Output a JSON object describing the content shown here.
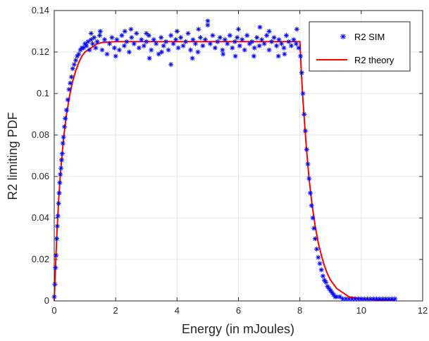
{
  "chart_data": {
    "type": "scatter",
    "xlabel": "Energy (in mJoules)",
    "ylabel": "R2 limiting PDF",
    "xlim": [
      0,
      12
    ],
    "ylim": [
      0,
      0.14
    ],
    "x_ticks": [
      0,
      2,
      4,
      6,
      8,
      10,
      12
    ],
    "y_ticks": [
      0,
      0.02,
      0.04,
      0.06,
      0.08,
      0.1,
      0.12,
      0.14
    ],
    "x_tick_labels": [
      "0",
      "2",
      "4",
      "6",
      "8",
      "10",
      "12"
    ],
    "y_tick_labels": [
      "0",
      "0.02",
      "0.04",
      "0.06",
      "0.08",
      "0.1",
      "0.12",
      "0.14"
    ],
    "grid": true,
    "legend_position": "top-right",
    "series": [
      {
        "name": "R2 SIM",
        "kind": "scatter",
        "marker": "asterisk",
        "color": "#0000ff",
        "x": [
          0.0,
          0.02,
          0.04,
          0.06,
          0.08,
          0.1,
          0.12,
          0.14,
          0.16,
          0.18,
          0.2,
          0.22,
          0.24,
          0.26,
          0.28,
          0.3,
          0.33,
          0.36,
          0.4,
          0.44,
          0.48,
          0.52,
          0.56,
          0.6,
          0.65,
          0.7,
          0.75,
          0.8,
          0.85,
          0.9,
          0.95,
          1.0,
          1.05,
          1.1,
          1.15,
          1.2,
          1.25,
          1.3,
          1.35,
          1.4,
          1.48,
          1.56,
          1.64,
          1.72,
          1.8,
          1.88,
          1.96,
          2.04,
          2.12,
          2.2,
          2.28,
          2.36,
          2.44,
          2.52,
          2.6,
          2.68,
          2.76,
          2.84,
          2.92,
          3.0,
          3.08,
          3.16,
          3.24,
          3.32,
          3.4,
          3.48,
          3.56,
          3.64,
          3.72,
          3.8,
          3.88,
          3.96,
          4.04,
          4.12,
          4.2,
          4.28,
          4.36,
          4.44,
          4.52,
          4.6,
          4.68,
          4.76,
          4.84,
          4.92,
          5.0,
          5.08,
          5.16,
          5.24,
          5.32,
          5.4,
          5.48,
          5.56,
          5.64,
          5.72,
          5.8,
          5.88,
          5.96,
          6.04,
          6.12,
          6.2,
          6.28,
          6.36,
          6.44,
          6.52,
          6.6,
          6.68,
          6.76,
          6.84,
          6.92,
          7.0,
          7.08,
          7.16,
          7.24,
          7.32,
          7.4,
          7.48,
          7.56,
          7.64,
          7.72,
          7.8,
          7.88,
          7.96,
          8.02,
          8.06,
          8.1,
          8.14,
          8.18,
          8.22,
          8.26,
          8.3,
          8.34,
          8.38,
          8.42,
          8.46,
          8.5,
          8.55,
          8.6,
          8.65,
          8.7,
          8.75,
          8.8,
          8.85,
          8.9,
          8.95,
          9.0,
          9.05,
          9.1,
          9.15,
          9.2,
          9.3,
          9.4,
          9.5,
          9.6,
          9.7,
          9.8,
          9.9,
          10.0,
          10.1,
          10.2,
          10.3,
          10.4,
          10.5,
          10.6,
          10.7,
          10.8,
          10.9,
          11.0,
          11.1,
          1.5,
          2.0,
          2.5,
          3.0,
          3.5,
          3.8,
          4.0,
          4.5,
          5.0,
          5.5,
          6.0,
          6.5,
          7.0,
          7.5,
          1.2,
          2.3,
          3.1,
          4.7,
          5.9,
          6.7,
          7.3,
          7.9
        ],
        "y": [
          0.002,
          0.008,
          0.016,
          0.022,
          0.03,
          0.036,
          0.041,
          0.047,
          0.052,
          0.057,
          0.061,
          0.064,
          0.068,
          0.071,
          0.076,
          0.079,
          0.084,
          0.088,
          0.092,
          0.097,
          0.102,
          0.105,
          0.108,
          0.112,
          0.114,
          0.116,
          0.118,
          0.119,
          0.121,
          0.122,
          0.122,
          0.124,
          0.123,
          0.125,
          0.121,
          0.126,
          0.124,
          0.127,
          0.122,
          0.125,
          0.128,
          0.121,
          0.126,
          0.119,
          0.124,
          0.127,
          0.122,
          0.126,
          0.121,
          0.128,
          0.123,
          0.125,
          0.12,
          0.127,
          0.124,
          0.129,
          0.122,
          0.126,
          0.123,
          0.125,
          0.128,
          0.121,
          0.126,
          0.124,
          0.119,
          0.127,
          0.123,
          0.125,
          0.121,
          0.128,
          0.124,
          0.126,
          0.122,
          0.127,
          0.123,
          0.125,
          0.129,
          0.121,
          0.126,
          0.124,
          0.12,
          0.127,
          0.123,
          0.126,
          0.133,
          0.124,
          0.128,
          0.122,
          0.125,
          0.127,
          0.121,
          0.126,
          0.124,
          0.128,
          0.122,
          0.125,
          0.127,
          0.123,
          0.126,
          0.121,
          0.128,
          0.124,
          0.125,
          0.122,
          0.127,
          0.123,
          0.126,
          0.124,
          0.128,
          0.121,
          0.125,
          0.127,
          0.123,
          0.126,
          0.124,
          0.122,
          0.128,
          0.125,
          0.123,
          0.126,
          0.124,
          0.122,
          0.118,
          0.11,
          0.1,
          0.09,
          0.082,
          0.073,
          0.066,
          0.059,
          0.052,
          0.046,
          0.04,
          0.035,
          0.03,
          0.025,
          0.021,
          0.018,
          0.015,
          0.012,
          0.01,
          0.009,
          0.007,
          0.006,
          0.005,
          0.004,
          0.003,
          0.002,
          0.002,
          0.002,
          0.001,
          0.001,
          0.001,
          0.001,
          0.001,
          0.001,
          0.001,
          0.001,
          0.001,
          0.001,
          0.001,
          0.001,
          0.001,
          0.001,
          0.001,
          0.001,
          0.001,
          0.001,
          0.13,
          0.118,
          0.131,
          0.129,
          0.12,
          0.114,
          0.13,
          0.117,
          0.135,
          0.119,
          0.131,
          0.118,
          0.13,
          0.119,
          0.129,
          0.13,
          0.117,
          0.131,
          0.118,
          0.132,
          0.118,
          0.131
        ]
      },
      {
        "name": "R2 theory",
        "kind": "line",
        "color": "#ff0000",
        "x": [
          0,
          0.05,
          0.1,
          0.15,
          0.2,
          0.3,
          0.4,
          0.5,
          0.6,
          0.7,
          0.8,
          0.9,
          1.0,
          1.2,
          1.4,
          1.6,
          2.0,
          3.0,
          4.0,
          5.0,
          6.0,
          7.0,
          7.9,
          7.95,
          8.0,
          8.05,
          8.1,
          8.2,
          8.3,
          8.4,
          8.5,
          8.6,
          8.7,
          8.8,
          8.9,
          9.0,
          9.2,
          9.4,
          9.6,
          9.8,
          10.0,
          10.5,
          11.0,
          11.1
        ],
        "y": [
          0,
          0.02,
          0.037,
          0.05,
          0.061,
          0.078,
          0.09,
          0.099,
          0.106,
          0.111,
          0.115,
          0.118,
          0.12,
          0.122,
          0.124,
          0.1247,
          0.125,
          0.125,
          0.125,
          0.125,
          0.125,
          0.125,
          0.125,
          0.125,
          0.125,
          0.11,
          0.097,
          0.076,
          0.059,
          0.046,
          0.036,
          0.028,
          0.022,
          0.017,
          0.013,
          0.01,
          0.006,
          0.004,
          0.002,
          0.0015,
          0.001,
          0.0005,
          0.0005,
          0.0005
        ]
      }
    ]
  }
}
